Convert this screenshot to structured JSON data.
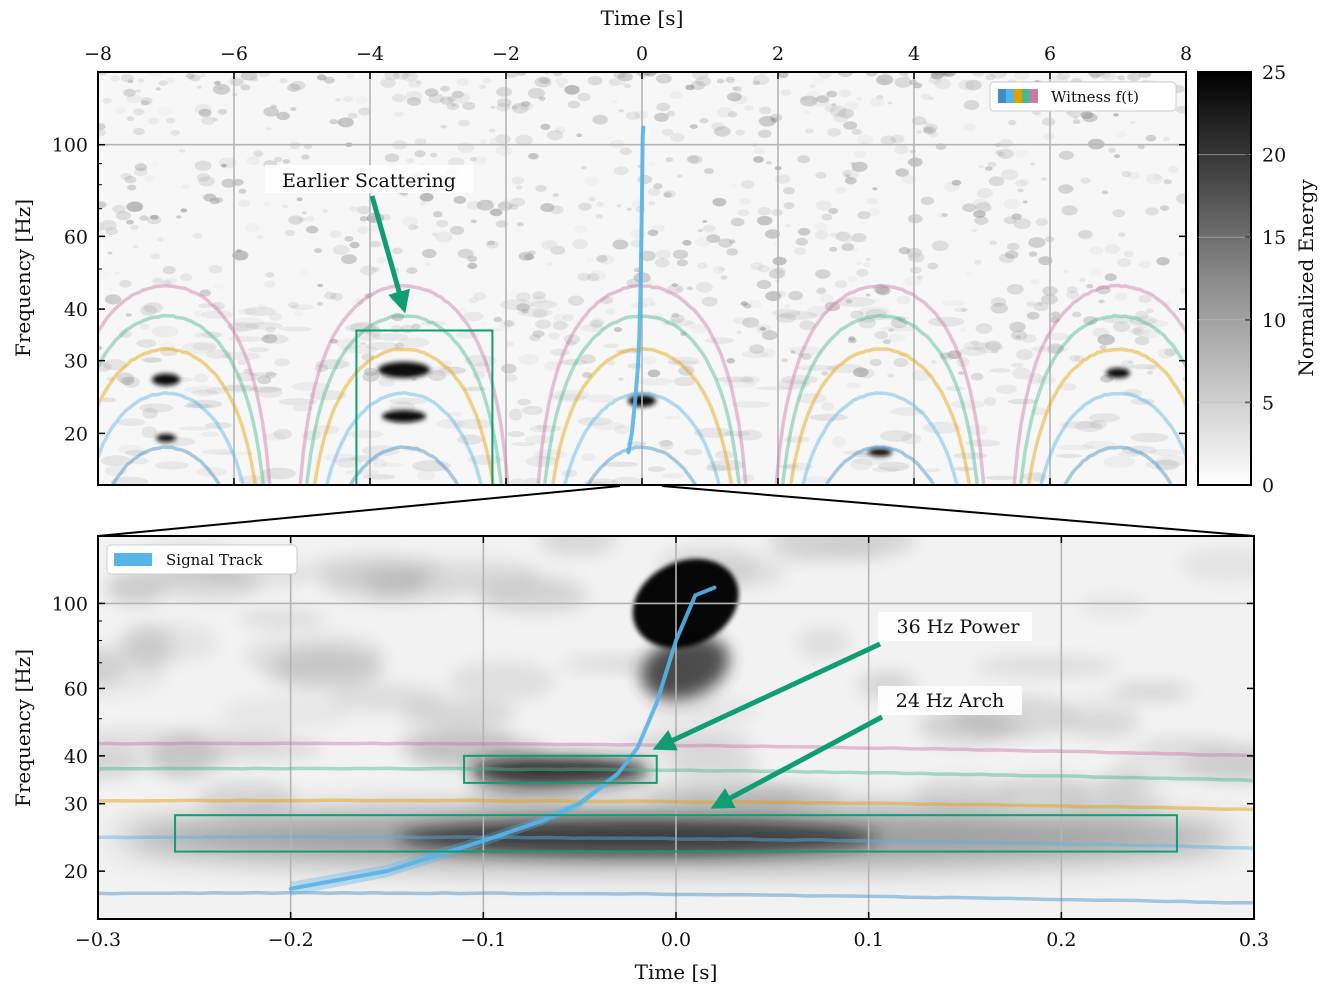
{
  "colors": {
    "annotation": "#0f9e74",
    "signal": "#56b4e9",
    "witness": [
      "#3f8fc6",
      "#56b4e9",
      "#e69f00",
      "#47b88f",
      "#cc79a7"
    ]
  },
  "chart_data": [
    {
      "type": "heatmap",
      "panel": "overview",
      "xlabel": "Time [s]",
      "ylabel": "Frequency [Hz]",
      "xlim": [
        -8,
        8
      ],
      "ylim": [
        15,
        150
      ],
      "yscale": "log",
      "xticks": [
        "−8",
        "−6",
        "−4",
        "−2",
        "0",
        "2",
        "4",
        "6",
        "8"
      ],
      "yticks": [
        "20",
        "30",
        "40",
        "60",
        "100"
      ],
      "grid": true,
      "legend": {
        "position": "top-right",
        "entries": [
          "Witness f(t)"
        ]
      },
      "colorbar": {
        "label": "Normalized Energy",
        "range": [
          0,
          25
        ],
        "ticks": [
          "0",
          "5",
          "10",
          "15",
          "20",
          "25"
        ],
        "colormap": "greys"
      },
      "witness_arches": {
        "centers": [
          -7.0,
          -3.5,
          0.0,
          3.5,
          7.0
        ],
        "peak_frequencies_hz": [
          18.5,
          25.0,
          32.0,
          38.5,
          45.5
        ],
        "half_width_s": 1.4
      },
      "signal_track": {
        "t": [
          -0.2,
          -0.15,
          -0.1,
          -0.06,
          -0.04,
          -0.02,
          0.0,
          0.01,
          0.02
        ],
        "f": [
          18.0,
          20.0,
          24.0,
          29.0,
          34.0,
          45.0,
          75.0,
          105.0,
          110.0
        ]
      },
      "highlight_box": {
        "t": [
          -4.2,
          -2.2
        ],
        "f": [
          15.0,
          35.5
        ]
      },
      "annotations": [
        {
          "text": "Earlier Scattering",
          "target_t": -3.5,
          "target_f": 40.0
        }
      ]
    },
    {
      "type": "heatmap",
      "panel": "zoom",
      "xlabel": "Time [s]",
      "ylabel": "Frequency [Hz]",
      "xlim": [
        -0.3,
        0.3
      ],
      "ylim": [
        15,
        150
      ],
      "yscale": "log",
      "xticks": [
        "−0.3",
        "−0.2",
        "−0.1",
        "0.0",
        "0.1",
        "0.2",
        "0.3"
      ],
      "yticks": [
        "20",
        "30",
        "40",
        "60",
        "100"
      ],
      "grid": true,
      "legend": {
        "position": "top-left",
        "entries": [
          "Signal Track"
        ]
      },
      "witness_lines_hz": [
        {
          "start": 17.5,
          "end": 16.5
        },
        {
          "start": 24.5,
          "end": 23.0
        },
        {
          "start": 30.5,
          "end": 29.0
        },
        {
          "start": 37.0,
          "end": 34.5
        },
        {
          "start": 43.0,
          "end": 40.0
        }
      ],
      "signal_track": {
        "t": [
          -0.2,
          -0.15,
          -0.1,
          -0.07,
          -0.05,
          -0.03,
          -0.02,
          -0.01,
          0.0,
          0.01,
          0.02
        ],
        "f": [
          18.0,
          20.0,
          24.0,
          27.0,
          30.0,
          36.0,
          42.0,
          55.0,
          80.0,
          105.0,
          110.0
        ]
      },
      "boxes": [
        {
          "name": "36 Hz Power",
          "t": [
            -0.11,
            -0.01
          ],
          "f": [
            34.0,
            40.0
          ]
        },
        {
          "name": "24 Hz Arch",
          "t": [
            -0.26,
            0.26
          ],
          "f": [
            22.5,
            28.0
          ]
        }
      ],
      "annotations": [
        {
          "text": "36 Hz Power",
          "target_t": -0.01,
          "target_f": 42.0
        },
        {
          "text": "24 Hz Arch",
          "target_t": 0.02,
          "target_f": 29.5
        }
      ]
    }
  ]
}
